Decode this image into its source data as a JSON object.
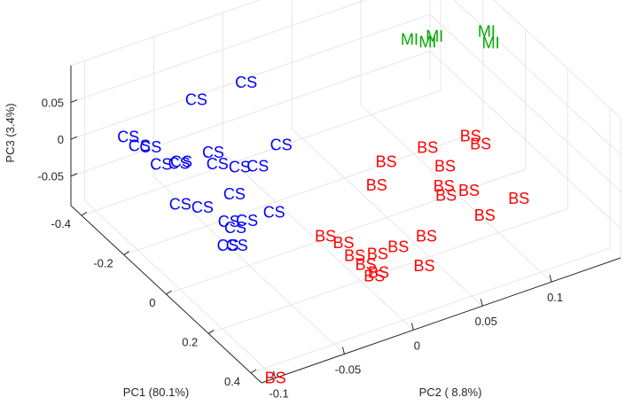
{
  "chart_data": {
    "type": "scatter",
    "title": "",
    "grid": true,
    "axes": {
      "pc1": {
        "label": "PC1 (80.1%)",
        "range": [
          -0.45,
          0.45
        ],
        "ticks": [
          "-0.4",
          "-0.2",
          "0",
          "0.2",
          "0.4"
        ]
      },
      "pc2": {
        "label": "PC2 ( 8.8%)",
        "range": [
          -0.11,
          0.15
        ],
        "ticks": [
          "-0.1",
          "-0.05",
          "0",
          "0.05",
          "0.1"
        ]
      },
      "pc3": {
        "label": "PC3 (3.4%)",
        "range": [
          -0.09,
          0.1
        ],
        "ticks": [
          "0.05",
          "0",
          "-0.05"
        ]
      }
    },
    "series": [
      {
        "name": "CS",
        "color": "#0000ff",
        "points": [
          {
            "label": "CS",
            "pc1": -0.44,
            "pc2": -0.07,
            "pc3": -0.02
          },
          {
            "label": "CS",
            "pc1": -0.42,
            "pc2": -0.065,
            "pc3": -0.03
          },
          {
            "label": "CS",
            "pc1": -0.4,
            "pc2": -0.06,
            "pc3": -0.03
          },
          {
            "label": "CS",
            "pc1": -0.38,
            "pc2": -0.03,
            "pc3": 0.02
          },
          {
            "label": "CS",
            "pc1": -0.35,
            "pc2": -0.06,
            "pc3": -0.04
          },
          {
            "label": "CS",
            "pc1": -0.33,
            "pc2": -0.05,
            "pc3": -0.04
          },
          {
            "label": "CS",
            "pc1": -0.32,
            "pc2": -0.05,
            "pc3": -0.035
          },
          {
            "label": "CS",
            "pc1": -0.34,
            "pc2": 0.0,
            "pc3": 0.035
          },
          {
            "label": "CS",
            "pc1": -0.3,
            "pc2": -0.03,
            "pc3": -0.03
          },
          {
            "label": "CS",
            "pc1": -0.28,
            "pc2": -0.03,
            "pc3": -0.04
          },
          {
            "label": "CS",
            "pc1": -0.26,
            "pc2": -0.06,
            "pc3": -0.07
          },
          {
            "label": "CS",
            "pc1": -0.22,
            "pc2": -0.05,
            "pc3": -0.07
          },
          {
            "label": "CS",
            "pc1": -0.24,
            "pc2": -0.02,
            "pc3": -0.04
          },
          {
            "label": "CS",
            "pc1": -0.22,
            "pc2": -0.01,
            "pc3": -0.04
          },
          {
            "label": "CS",
            "pc1": -0.24,
            "pc2": 0.01,
            "pc3": -0.03
          },
          {
            "label": "CS",
            "pc1": -0.2,
            "pc2": -0.03,
            "pc3": -0.06
          },
          {
            "label": "CS",
            "pc1": -0.16,
            "pc2": -0.04,
            "pc3": -0.08
          },
          {
            "label": "CS",
            "pc1": -0.14,
            "pc2": -0.03,
            "pc3": -0.08
          },
          {
            "label": "CS",
            "pc1": -0.13,
            "pc2": -0.04,
            "pc3": -0.08
          },
          {
            "label": "CS",
            "pc1": -0.1,
            "pc2": -0.05,
            "pc3": -0.09
          },
          {
            "label": "CS",
            "pc1": -0.09,
            "pc2": -0.045,
            "pc3": -0.09
          },
          {
            "label": "CS",
            "pc1": -0.11,
            "pc2": -0.015,
            "pc3": -0.07
          }
        ]
      },
      {
        "name": "MI",
        "color": "#00aa00",
        "points": [
          {
            "label": "MI",
            "pc1": -0.22,
            "pc2": 0.1,
            "pc3": 0.06
          },
          {
            "label": "MI",
            "pc1": -0.2,
            "pc2": 0.11,
            "pc3": 0.055
          },
          {
            "label": "MI",
            "pc1": -0.2,
            "pc2": 0.115,
            "pc3": 0.06
          },
          {
            "label": "MI",
            "pc1": -0.15,
            "pc2": 0.145,
            "pc3": 0.06
          },
          {
            "label": "MI",
            "pc1": -0.13,
            "pc2": 0.145,
            "pc3": 0.05
          }
        ]
      },
      {
        "name": "BS",
        "color": "#ff0000",
        "points": [
          {
            "label": "BS",
            "pc1": -0.07,
            "pc2": 0.06,
            "pc3": -0.04
          },
          {
            "label": "BS",
            "pc1": -0.05,
            "pc2": 0.05,
            "pc3": -0.06
          },
          {
            "label": "BS",
            "pc1": -0.07,
            "pc2": 0.09,
            "pc3": -0.04
          },
          {
            "label": "BS",
            "pc1": -0.02,
            "pc2": 0.095,
            "pc3": -0.055
          },
          {
            "label": "BS",
            "pc1": -0.03,
            "pc2": 0.115,
            "pc3": -0.03
          },
          {
            "label": "BS",
            "pc1": -0.015,
            "pc2": 0.12,
            "pc3": -0.04
          },
          {
            "label": "BS",
            "pc1": 0.04,
            "pc2": 0.085,
            "pc3": -0.06
          },
          {
            "label": "BS",
            "pc1": 0.05,
            "pc2": 0.085,
            "pc3": -0.07
          },
          {
            "label": "BS",
            "pc1": 0.06,
            "pc2": 0.1,
            "pc3": -0.07
          },
          {
            "label": "BS",
            "pc1": 0.1,
            "pc2": 0.13,
            "pc3": -0.09
          },
          {
            "label": "BS",
            "pc1": 0.1,
            "pc2": -0.01,
            "pc3": -0.05
          },
          {
            "label": "BS",
            "pc1": 0.12,
            "pc2": -0.0,
            "pc3": -0.06
          },
          {
            "label": "BS",
            "pc1": 0.14,
            "pc2": 0.005,
            "pc3": -0.075
          },
          {
            "label": "BS",
            "pc1": 0.16,
            "pc2": 0.01,
            "pc3": -0.085
          },
          {
            "label": "BS",
            "pc1": 0.15,
            "pc2": 0.02,
            "pc3": -0.08
          },
          {
            "label": "BS",
            "pc1": 0.15,
            "pc2": 0.035,
            "pc3": -0.08
          },
          {
            "label": "BS",
            "pc1": 0.12,
            "pc2": 0.06,
            "pc3": -0.09
          },
          {
            "label": "BS",
            "pc1": 0.2,
            "pc2": 0.01,
            "pc3": -0.09
          },
          {
            "label": "BS",
            "pc1": 0.24,
            "pc2": 0.04,
            "pc3": -0.085
          },
          {
            "label": "BS",
            "pc1": 0.22,
            "pc2": 0.01,
            "pc3": -0.08
          },
          {
            "label": "BS",
            "pc1": 0.2,
            "pc2": 0.09,
            "pc3": -0.06
          },
          {
            "label": "BS",
            "pc1": 0.45,
            "pc2": -0.1,
            "pc3": -0.09
          }
        ]
      }
    ]
  }
}
